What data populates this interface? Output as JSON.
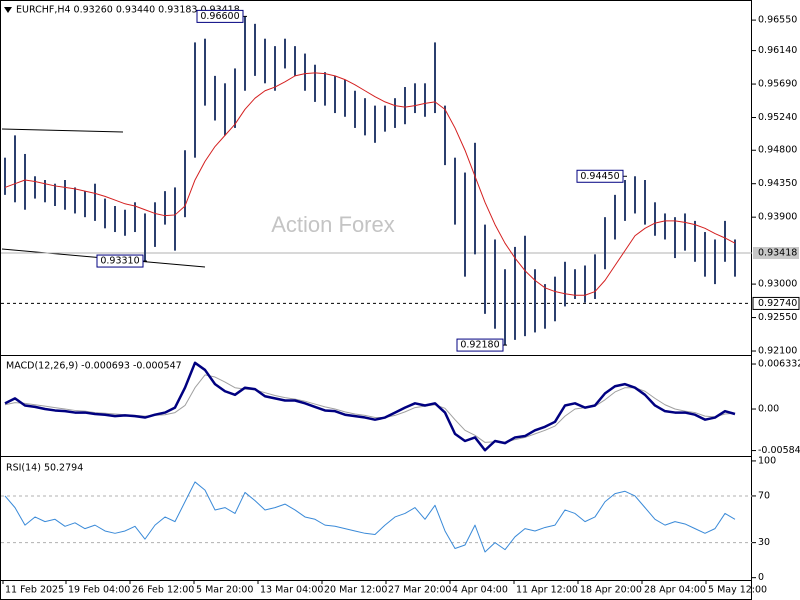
{
  "chart_data": [
    {
      "type": "range",
      "title": "EURCHF,H4 0.93260 0.93440 0.93183 0.93418",
      "watermark": "Action Forex",
      "color": "#2b3f6e",
      "high": [
        0.947,
        0.95,
        0.9475,
        0.9445,
        0.944,
        0.9435,
        0.944,
        0.943,
        0.9425,
        0.9435,
        0.9415,
        0.9405,
        0.94,
        0.941,
        0.9395,
        0.941,
        0.9425,
        0.943,
        0.948,
        0.9625,
        0.963,
        0.958,
        0.957,
        0.959,
        0.966,
        0.965,
        0.963,
        0.962,
        0.963,
        0.962,
        0.961,
        0.9595,
        0.9585,
        0.958,
        0.9575,
        0.956,
        0.955,
        0.954,
        0.954,
        0.955,
        0.9565,
        0.957,
        0.957,
        0.9625,
        0.954,
        0.947,
        0.945,
        0.949,
        0.938,
        0.936,
        0.932,
        0.935,
        0.9365,
        0.932,
        0.93,
        0.931,
        0.933,
        0.932,
        0.9325,
        0.934,
        0.939,
        0.942,
        0.944,
        0.9445,
        0.944,
        0.941,
        0.9395,
        0.939,
        0.9395,
        0.9385,
        0.937,
        0.936,
        0.9385,
        0.936
      ],
      "low": [
        0.942,
        0.941,
        0.94,
        0.9415,
        0.941,
        0.9405,
        0.94,
        0.9395,
        0.939,
        0.9385,
        0.9375,
        0.937,
        0.9365,
        0.937,
        0.9331,
        0.935,
        0.938,
        0.9345,
        0.939,
        0.947,
        0.954,
        0.952,
        0.95,
        0.951,
        0.956,
        0.958,
        0.957,
        0.956,
        0.959,
        0.958,
        0.956,
        0.9545,
        0.954,
        0.953,
        0.9525,
        0.951,
        0.95,
        0.949,
        0.9505,
        0.951,
        0.9515,
        0.953,
        0.9525,
        0.953,
        0.946,
        0.938,
        0.931,
        0.934,
        0.926,
        0.924,
        0.9218,
        0.9225,
        0.923,
        0.9235,
        0.924,
        0.925,
        0.927,
        0.928,
        0.9275,
        0.928,
        0.932,
        0.936,
        0.9385,
        0.9395,
        0.938,
        0.9365,
        0.936,
        0.9335,
        0.9345,
        0.933,
        0.931,
        0.93,
        0.933,
        0.931
      ],
      "ma": {
        "color": "#d42020",
        "values": [
          0.943,
          0.9435,
          0.944,
          0.9438,
          0.9435,
          0.9432,
          0.943,
          0.9428,
          0.9425,
          0.9422,
          0.9418,
          0.9413,
          0.9408,
          0.9405,
          0.94,
          0.9395,
          0.9392,
          0.9393,
          0.9405,
          0.944,
          0.9465,
          0.9485,
          0.95,
          0.9515,
          0.9535,
          0.955,
          0.956,
          0.9565,
          0.9572,
          0.958,
          0.9583,
          0.9584,
          0.9583,
          0.958,
          0.9575,
          0.9568,
          0.956,
          0.9552,
          0.9545,
          0.954,
          0.9538,
          0.954,
          0.9543,
          0.9545,
          0.9535,
          0.951,
          0.948,
          0.9445,
          0.941,
          0.938,
          0.9355,
          0.9335,
          0.9318,
          0.9305,
          0.9295,
          0.929,
          0.9287,
          0.9285,
          0.9285,
          0.929,
          0.9305,
          0.9325,
          0.9345,
          0.9365,
          0.9375,
          0.9382,
          0.9385,
          0.9385,
          0.9383,
          0.938,
          0.9375,
          0.9368,
          0.9362,
          0.9355
        ]
      },
      "ylim": [
        0.9206,
        0.9678
      ],
      "yticks": [
        {
          "value": 0.9655,
          "label": "0.96550"
        },
        {
          "value": 0.9614,
          "label": "0.96140"
        },
        {
          "value": 0.9569,
          "label": "0.95690"
        },
        {
          "value": 0.9524,
          "label": "0.95240"
        },
        {
          "value": 0.948,
          "label": "0.94800"
        },
        {
          "value": 0.9435,
          "label": "0.94350"
        },
        {
          "value": 0.939,
          "label": "0.93900"
        },
        {
          "value": 0.93,
          "label": "0.93000"
        },
        {
          "value": 0.9255,
          "label": "0.92550"
        },
        {
          "value": 0.921,
          "label": "0.92100"
        }
      ],
      "levels": [
        {
          "value": 0.93418,
          "label": "0.93418",
          "style": "solid"
        },
        {
          "value": 0.9274,
          "label": "0.92740",
          "style": "dashed"
        }
      ],
      "annotations": [
        {
          "label": "0.96600",
          "value": 0.966,
          "x": 24
        },
        {
          "label": "0.93310",
          "value": 0.9331,
          "x": 14
        },
        {
          "label": "0.92180",
          "value": 0.9218,
          "x": 50
        },
        {
          "label": "0.94450",
          "value": 0.9445,
          "x": 62
        }
      ],
      "xticks": [
        {
          "value": -0.2,
          "label": "11 Feb 2025"
        },
        {
          "value": 6.1,
          "label": "19 Feb 04:00"
        },
        {
          "value": 12.5,
          "label": "26 Feb 12:00"
        },
        {
          "value": 18.9,
          "label": "5 Mar 20:00"
        },
        {
          "value": 25.3,
          "label": "13 Mar 04:00"
        },
        {
          "value": 31.7,
          "label": "20 Mar 12:00"
        },
        {
          "value": 38.1,
          "label": "27 Mar 20:00"
        },
        {
          "value": 44.5,
          "label": "4 Apr 04:00"
        },
        {
          "value": 50.9,
          "label": "11 Apr 12:00"
        },
        {
          "value": 57.3,
          "label": "18 Apr 20:00"
        },
        {
          "value": 63.7,
          "label": "28 Apr 04:00"
        },
        {
          "value": 70.1,
          "label": "5 May 12:00"
        }
      ]
    },
    {
      "type": "line",
      "title": "MACD(12,26,9) -0.000693 -0.000547",
      "series": [
        {
          "color": "#000080",
          "values": [
            0.0008,
            0.0015,
            0.0005,
            0.0003,
            0.0,
            -0.0002,
            -0.0003,
            -0.0005,
            -0.0005,
            -0.0007,
            -0.0008,
            -0.001,
            -0.0009,
            -0.001,
            -0.0012,
            -0.0008,
            -0.0005,
            0.0002,
            0.003,
            0.0065,
            0.0055,
            0.0035,
            0.0025,
            0.002,
            0.003,
            0.0028,
            0.0018,
            0.0015,
            0.0012,
            0.0012,
            0.0008,
            0.0003,
            -0.0002,
            -0.0003,
            -0.0008,
            -0.001,
            -0.0012,
            -0.0015,
            -0.0012,
            -0.0005,
            0.0002,
            0.0008,
            0.0005,
            0.0008,
            -0.0005,
            -0.0035,
            -0.0045,
            -0.004,
            -0.0058,
            -0.0045,
            -0.0048,
            -0.004,
            -0.0038,
            -0.003,
            -0.0025,
            -0.0018,
            0.0005,
            0.0008,
            0.0002,
            0.0005,
            0.0022,
            0.0032,
            0.0035,
            0.003,
            0.002,
            0.0005,
            -0.0003,
            -0.0005,
            -0.0005,
            -0.0008,
            -0.0015,
            -0.0012,
            -0.0003,
            -0.0007
          ]
        },
        {
          "color": "#a0a0a0",
          "values": [
            0.0006,
            0.0009,
            0.0008,
            0.0006,
            0.0004,
            0.0002,
            0.0,
            -0.0002,
            -0.0003,
            -0.0005,
            -0.0006,
            -0.0007,
            -0.0008,
            -0.0009,
            -0.001,
            -0.0009,
            -0.0008,
            -0.0005,
            0.0005,
            0.003,
            0.0048,
            0.0045,
            0.0038,
            0.003,
            0.0028,
            0.0027,
            0.0023,
            0.0019,
            0.0016,
            0.0014,
            0.0011,
            0.0007,
            0.0003,
            0.0,
            -0.0004,
            -0.0007,
            -0.0009,
            -0.0012,
            -0.0012,
            -0.0009,
            -0.0004,
            0.0002,
            0.0004,
            0.0006,
            0.0001,
            -0.0015,
            -0.003,
            -0.0037,
            -0.0047,
            -0.0046,
            -0.0047,
            -0.0043,
            -0.004,
            -0.0035,
            -0.003,
            -0.0024,
            -0.001,
            0.0,
            0.0002,
            0.0004,
            0.0013,
            0.0024,
            0.003,
            0.003,
            0.0025,
            0.0015,
            0.0006,
            0.0,
            -0.0003,
            -0.0005,
            -0.001,
            -0.0011,
            -0.0007,
            -0.0006
          ]
        }
      ],
      "ylim": [
        -0.00647,
        0.00732
      ],
      "yticks": [
        0.006332,
        {
          "value": 0,
          "label": "0.00"
        },
        -0.005845
      ]
    },
    {
      "type": "line",
      "title": "RSI(14) 50.2794",
      "series": [
        {
          "color": "#3a8ad8",
          "values": [
            70,
            60,
            45,
            52,
            48,
            50,
            44,
            47,
            42,
            45,
            40,
            38,
            40,
            44,
            33,
            45,
            52,
            48,
            65,
            82,
            75,
            58,
            60,
            55,
            73,
            66,
            58,
            60,
            63,
            58,
            52,
            50,
            45,
            44,
            42,
            40,
            38,
            37,
            45,
            52,
            55,
            60,
            50,
            62,
            40,
            25,
            28,
            45,
            22,
            30,
            24,
            35,
            42,
            40,
            43,
            45,
            58,
            55,
            48,
            52,
            65,
            72,
            74,
            70,
            60,
            50,
            45,
            48,
            46,
            42,
            38,
            42,
            55,
            50
          ]
        }
      ],
      "ylim": [
        -2,
        102.5
      ],
      "yticks": [
        100,
        70,
        30,
        0
      ],
      "levels": [
        70,
        30
      ]
    }
  ]
}
